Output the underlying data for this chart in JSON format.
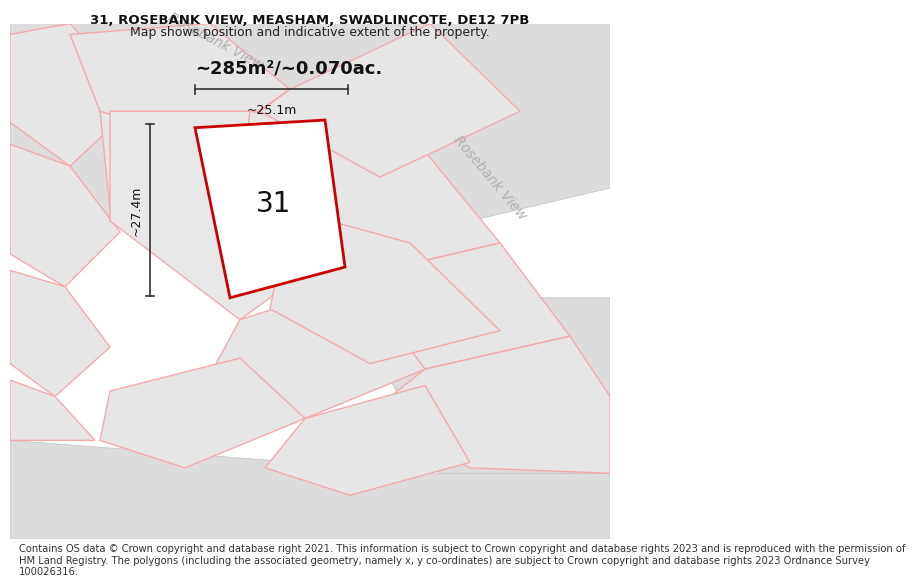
{
  "title_line1": "31, ROSEBANK VIEW, MEASHAM, SWADLINCOTE, DE12 7PB",
  "title_line2": "Map shows position and indicative extent of the property.",
  "footer_lines": [
    "Contains OS data © Crown copyright and database right 2021. This information is subject to Crown copyright and database rights 2023 and is reproduced with the permission of",
    "HM Land Registry. The polygons (including the associated geometry, namely x, y co-ordinates) are subject to Crown copyright and database rights 2023 Ordnance Survey",
    "100026316."
  ],
  "area_label": "~285m²/~0.070ac.",
  "number_label": "31",
  "dim_width": "~25.1m",
  "dim_height": "~27.4m",
  "street_label_top": "Rosebank View",
  "street_label_right": "Rosebank View",
  "bg_map_color": "#f2f2f2",
  "plot_fill": "#ffffff",
  "plot_edge": "#cc0000",
  "parcel_fill": "#e6e6e6",
  "parcel_stroke": "#f5aaaa",
  "road_fill": "#e0e0e0",
  "road_stroke_color": "#bbbbbb",
  "title_fontsize": 9.5,
  "footer_fontsize": 7.2,
  "street_label_color": "#b0b0b0",
  "dim_line_color": "#333333",
  "number_fontsize": 20,
  "area_fontsize": 13
}
